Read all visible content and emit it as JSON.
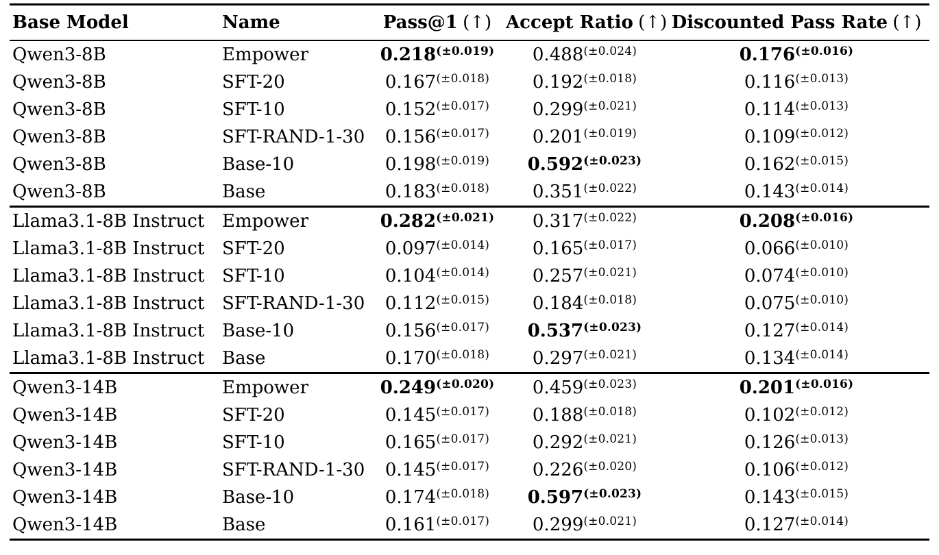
{
  "page": {
    "background_color": "#ffffff",
    "text_color": "#000000",
    "rule_color": "#000000"
  },
  "table": {
    "headers": [
      {
        "label": "Base Model",
        "suffix": ""
      },
      {
        "label": "Name",
        "suffix": ""
      },
      {
        "label": "Pass@1",
        "suffix": "(↑)"
      },
      {
        "label": "Accept Ratio",
        "suffix": "(↑)"
      },
      {
        "label": "Discounted Pass Rate",
        "suffix": "(↑)"
      }
    ],
    "metric_keys": [
      "pass_at_1",
      "accept_ratio",
      "discounted_pass_rate"
    ],
    "groups": [
      {
        "base_model": "Qwen3-8B",
        "rows": [
          {
            "name": "Empower",
            "pass_at_1": {
              "value": "0.218",
              "pm": "(±0.019)",
              "bold": true
            },
            "accept_ratio": {
              "value": "0.488",
              "pm": "(±0.024)",
              "bold": false
            },
            "discounted_pass_rate": {
              "value": "0.176",
              "pm": "(±0.016)",
              "bold": true
            }
          },
          {
            "name": "SFT-20",
            "pass_at_1": {
              "value": "0.167",
              "pm": "(±0.018)",
              "bold": false
            },
            "accept_ratio": {
              "value": "0.192",
              "pm": "(±0.018)",
              "bold": false
            },
            "discounted_pass_rate": {
              "value": "0.116",
              "pm": "(±0.013)",
              "bold": false
            }
          },
          {
            "name": "SFT-10",
            "pass_at_1": {
              "value": "0.152",
              "pm": "(±0.017)",
              "bold": false
            },
            "accept_ratio": {
              "value": "0.299",
              "pm": "(±0.021)",
              "bold": false
            },
            "discounted_pass_rate": {
              "value": "0.114",
              "pm": "(±0.013)",
              "bold": false
            }
          },
          {
            "name": "SFT-RAND-1-30",
            "pass_at_1": {
              "value": "0.156",
              "pm": "(±0.017)",
              "bold": false
            },
            "accept_ratio": {
              "value": "0.201",
              "pm": "(±0.019)",
              "bold": false
            },
            "discounted_pass_rate": {
              "value": "0.109",
              "pm": "(±0.012)",
              "bold": false
            }
          },
          {
            "name": "Base-10",
            "pass_at_1": {
              "value": "0.198",
              "pm": "(±0.019)",
              "bold": false
            },
            "accept_ratio": {
              "value": "0.592",
              "pm": "(±0.023)",
              "bold": true
            },
            "discounted_pass_rate": {
              "value": "0.162",
              "pm": "(±0.015)",
              "bold": false
            }
          },
          {
            "name": "Base",
            "pass_at_1": {
              "value": "0.183",
              "pm": "(±0.018)",
              "bold": false
            },
            "accept_ratio": {
              "value": "0.351",
              "pm": "(±0.022)",
              "bold": false
            },
            "discounted_pass_rate": {
              "value": "0.143",
              "pm": "(±0.014)",
              "bold": false
            }
          }
        ]
      },
      {
        "base_model": "Llama3.1-8B Instruct",
        "rows": [
          {
            "name": "Empower",
            "pass_at_1": {
              "value": "0.282",
              "pm": "(±0.021)",
              "bold": true
            },
            "accept_ratio": {
              "value": "0.317",
              "pm": "(±0.022)",
              "bold": false
            },
            "discounted_pass_rate": {
              "value": "0.208",
              "pm": "(±0.016)",
              "bold": true
            }
          },
          {
            "name": "SFT-20",
            "pass_at_1": {
              "value": "0.097",
              "pm": "(±0.014)",
              "bold": false
            },
            "accept_ratio": {
              "value": "0.165",
              "pm": "(±0.017)",
              "bold": false
            },
            "discounted_pass_rate": {
              "value": "0.066",
              "pm": "(±0.010)",
              "bold": false
            }
          },
          {
            "name": "SFT-10",
            "pass_at_1": {
              "value": "0.104",
              "pm": "(±0.014)",
              "bold": false
            },
            "accept_ratio": {
              "value": "0.257",
              "pm": "(±0.021)",
              "bold": false
            },
            "discounted_pass_rate": {
              "value": "0.074",
              "pm": "(±0.010)",
              "bold": false
            }
          },
          {
            "name": "SFT-RAND-1-30",
            "pass_at_1": {
              "value": "0.112",
              "pm": "(±0.015)",
              "bold": false
            },
            "accept_ratio": {
              "value": "0.184",
              "pm": "(±0.018)",
              "bold": false
            },
            "discounted_pass_rate": {
              "value": "0.075",
              "pm": "(±0.010)",
              "bold": false
            }
          },
          {
            "name": "Base-10",
            "pass_at_1": {
              "value": "0.156",
              "pm": "(±0.017)",
              "bold": false
            },
            "accept_ratio": {
              "value": "0.537",
              "pm": "(±0.023)",
              "bold": true
            },
            "discounted_pass_rate": {
              "value": "0.127",
              "pm": "(±0.014)",
              "bold": false
            }
          },
          {
            "name": "Base",
            "pass_at_1": {
              "value": "0.170",
              "pm": "(±0.018)",
              "bold": false
            },
            "accept_ratio": {
              "value": "0.297",
              "pm": "(±0.021)",
              "bold": false
            },
            "discounted_pass_rate": {
              "value": "0.134",
              "pm": "(±0.014)",
              "bold": false
            }
          }
        ]
      },
      {
        "base_model": "Qwen3-14B",
        "rows": [
          {
            "name": "Empower",
            "pass_at_1": {
              "value": "0.249",
              "pm": "(±0.020)",
              "bold": true
            },
            "accept_ratio": {
              "value": "0.459",
              "pm": "(±0.023)",
              "bold": false
            },
            "discounted_pass_rate": {
              "value": "0.201",
              "pm": "(±0.016)",
              "bold": true
            }
          },
          {
            "name": "SFT-20",
            "pass_at_1": {
              "value": "0.145",
              "pm": "(±0.017)",
              "bold": false
            },
            "accept_ratio": {
              "value": "0.188",
              "pm": "(±0.018)",
              "bold": false
            },
            "discounted_pass_rate": {
              "value": "0.102",
              "pm": "(±0.012)",
              "bold": false
            }
          },
          {
            "name": "SFT-10",
            "pass_at_1": {
              "value": "0.165",
              "pm": "(±0.017)",
              "bold": false
            },
            "accept_ratio": {
              "value": "0.292",
              "pm": "(±0.021)",
              "bold": false
            },
            "discounted_pass_rate": {
              "value": "0.126",
              "pm": "(±0.013)",
              "bold": false
            }
          },
          {
            "name": "SFT-RAND-1-30",
            "pass_at_1": {
              "value": "0.145",
              "pm": "(±0.017)",
              "bold": false
            },
            "accept_ratio": {
              "value": "0.226",
              "pm": "(±0.020)",
              "bold": false
            },
            "discounted_pass_rate": {
              "value": "0.106",
              "pm": "(±0.012)",
              "bold": false
            }
          },
          {
            "name": "Base-10",
            "pass_at_1": {
              "value": "0.174",
              "pm": "(±0.018)",
              "bold": false
            },
            "accept_ratio": {
              "value": "0.597",
              "pm": "(±0.023)",
              "bold": true
            },
            "discounted_pass_rate": {
              "value": "0.143",
              "pm": "(±0.015)",
              "bold": false
            }
          },
          {
            "name": "Base",
            "pass_at_1": {
              "value": "0.161",
              "pm": "(±0.017)",
              "bold": false
            },
            "accept_ratio": {
              "value": "0.299",
              "pm": "(±0.021)",
              "bold": false
            },
            "discounted_pass_rate": {
              "value": "0.127",
              "pm": "(±0.014)",
              "bold": false
            }
          }
        ]
      }
    ]
  }
}
